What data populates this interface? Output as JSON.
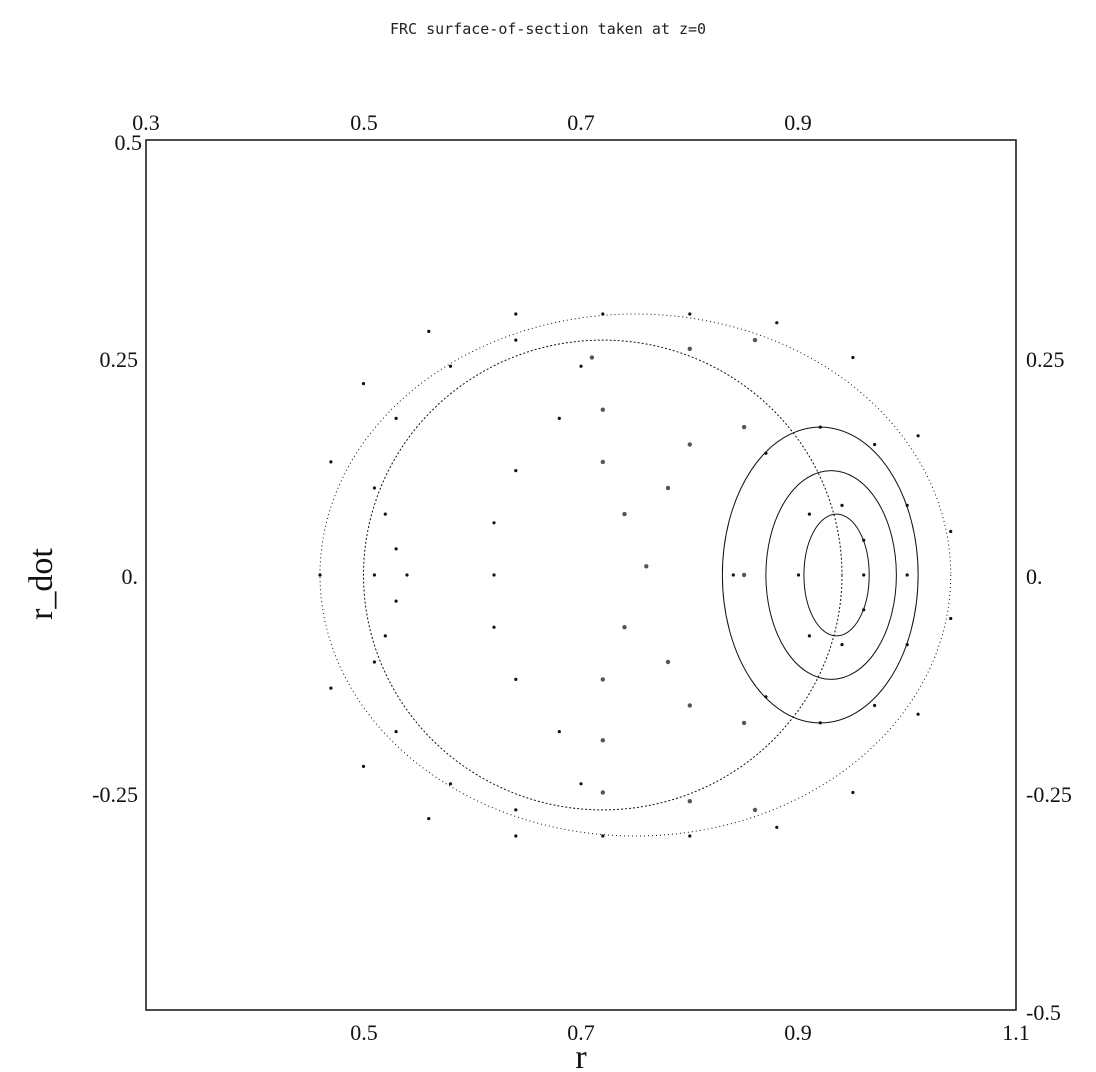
{
  "chart_data": {
    "type": "scatter",
    "title": "FRC surface-of-section taken at z=0",
    "xlabel": "r",
    "ylabel": "r_dot",
    "xlim": [
      0.3,
      1.1
    ],
    "ylim": [
      -0.5,
      0.5
    ],
    "x_ticks_bottom": [
      "0.5",
      "0.7",
      "0.9",
      "1.1"
    ],
    "x_ticks_top": [
      "0.3",
      "0.5",
      "0.7",
      "0.9"
    ],
    "y_ticks_left": [
      "0.5",
      "0.25",
      "0.",
      "-0.25"
    ],
    "y_ticks_right": [
      "0.25",
      "0.",
      "-0.25",
      "-0.5"
    ],
    "grid": false,
    "colors": {
      "orbits": "#111111",
      "chaotic": "#555555"
    },
    "series": [
      {
        "kind": "orbits",
        "points": [
          [
            0.46,
            0.0
          ],
          [
            0.47,
            0.13
          ],
          [
            0.5,
            0.22
          ],
          [
            0.56,
            0.28
          ],
          [
            0.64,
            0.3
          ],
          [
            0.72,
            0.3
          ],
          [
            0.8,
            0.3
          ],
          [
            0.88,
            0.29
          ],
          [
            0.95,
            0.25
          ],
          [
            1.01,
            0.16
          ],
          [
            1.04,
            0.05
          ],
          [
            1.04,
            -0.05
          ],
          [
            1.01,
            -0.16
          ],
          [
            0.95,
            -0.25
          ],
          [
            0.88,
            -0.29
          ],
          [
            0.8,
            -0.3
          ],
          [
            0.72,
            -0.3
          ],
          [
            0.64,
            -0.3
          ],
          [
            0.56,
            -0.28
          ],
          [
            0.5,
            -0.22
          ],
          [
            0.47,
            -0.13
          ],
          [
            0.51,
            0.0
          ],
          [
            0.51,
            0.1
          ],
          [
            0.53,
            0.18
          ],
          [
            0.58,
            0.24
          ],
          [
            0.64,
            0.27
          ],
          [
            0.7,
            0.24
          ],
          [
            0.68,
            0.18
          ],
          [
            0.64,
            0.12
          ],
          [
            0.62,
            0.06
          ],
          [
            0.62,
            0.0
          ],
          [
            0.62,
            -0.06
          ],
          [
            0.64,
            -0.12
          ],
          [
            0.68,
            -0.18
          ],
          [
            0.7,
            -0.24
          ],
          [
            0.64,
            -0.27
          ],
          [
            0.58,
            -0.24
          ],
          [
            0.53,
            -0.18
          ],
          [
            0.51,
            -0.1
          ],
          [
            0.52,
            0.07
          ],
          [
            0.53,
            0.03
          ],
          [
            0.54,
            0.0
          ],
          [
            0.53,
            -0.03
          ],
          [
            0.52,
            -0.07
          ],
          [
            0.84,
            0.0
          ],
          [
            0.87,
            0.14
          ],
          [
            0.92,
            0.17
          ],
          [
            0.97,
            0.15
          ],
          [
            1.0,
            0.08
          ],
          [
            1.0,
            0.0
          ],
          [
            1.0,
            -0.08
          ],
          [
            0.97,
            -0.15
          ],
          [
            0.92,
            -0.17
          ],
          [
            0.87,
            -0.14
          ],
          [
            0.9,
            0.0
          ],
          [
            0.91,
            0.07
          ],
          [
            0.94,
            0.08
          ],
          [
            0.96,
            0.04
          ],
          [
            0.96,
            0.0
          ],
          [
            0.96,
            -0.04
          ],
          [
            0.94,
            -0.08
          ],
          [
            0.91,
            -0.07
          ]
        ]
      },
      {
        "kind": "chaotic",
        "points": [
          [
            0.71,
            0.25
          ],
          [
            0.72,
            0.19
          ],
          [
            0.72,
            0.13
          ],
          [
            0.74,
            0.07
          ],
          [
            0.76,
            0.01
          ],
          [
            0.74,
            -0.06
          ],
          [
            0.72,
            -0.12
          ],
          [
            0.72,
            -0.19
          ],
          [
            0.72,
            -0.25
          ],
          [
            0.8,
            0.26
          ],
          [
            0.8,
            -0.26
          ],
          [
            0.86,
            0.27
          ],
          [
            0.86,
            -0.27
          ],
          [
            0.85,
            0.0
          ],
          [
            0.85,
            0.17
          ],
          [
            0.85,
            -0.17
          ],
          [
            0.8,
            0.15
          ],
          [
            0.8,
            -0.15
          ],
          [
            0.78,
            0.1
          ],
          [
            0.78,
            -0.1
          ]
        ]
      }
    ]
  }
}
